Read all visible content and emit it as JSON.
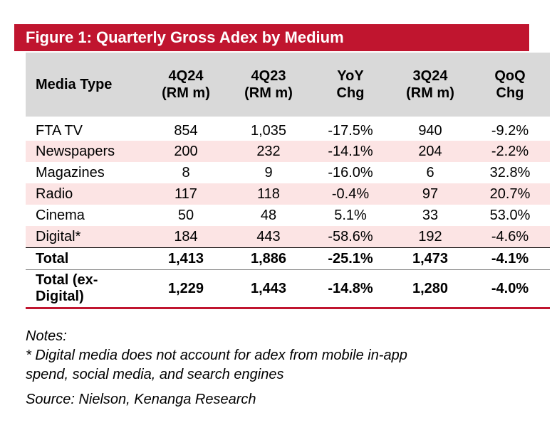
{
  "figure": {
    "title": "Figure 1: Quarterly Gross Adex by Medium",
    "accent_color": "#c0152f",
    "header_bg_color": "#d9d9d9",
    "shaded_row_color": "#fce4e4"
  },
  "table": {
    "headers": {
      "media_type": "Media Type",
      "q4_24_line1": "4Q24",
      "q4_24_line2": "(RM m)",
      "q4_23_line1": "4Q23",
      "q4_23_line2": "(RM m)",
      "yoy_line1": "YoY",
      "yoy_line2": "Chg",
      "q3_24_line1": "3Q24",
      "q3_24_line2": "(RM m)",
      "qoq_line1": "QoQ",
      "qoq_line2": "Chg"
    },
    "rows": [
      {
        "media": "FTA TV",
        "q4_24": "854",
        "q4_23": "1,035",
        "yoy": "-17.5%",
        "q3_24": "940",
        "qoq": "-9.2%"
      },
      {
        "media": "Newspapers",
        "q4_24": "200",
        "q4_23": "232",
        "yoy": "-14.1%",
        "q3_24": "204",
        "qoq": "-2.2%"
      },
      {
        "media": "Magazines",
        "q4_24": "8",
        "q4_23": "9",
        "yoy": "-16.0%",
        "q3_24": "6",
        "qoq": "32.8%"
      },
      {
        "media": "Radio",
        "q4_24": "117",
        "q4_23": "118",
        "yoy": "-0.4%",
        "q3_24": "97",
        "qoq": "20.7%"
      },
      {
        "media": "Cinema",
        "q4_24": "50",
        "q4_23": "48",
        "yoy": "5.1%",
        "q3_24": "33",
        "qoq": "53.0%"
      },
      {
        "media": "Digital*",
        "q4_24": "184",
        "q4_23": "443",
        "yoy": "-58.6%",
        "q3_24": "192",
        "qoq": "-4.6%"
      }
    ],
    "total": {
      "media": "Total",
      "q4_24": "1,413",
      "q4_23": "1,886",
      "yoy": "-25.1%",
      "q3_24": "1,473",
      "qoq": "-4.1%"
    },
    "total_ex_digital": {
      "media_line1": "Total (ex-",
      "media_line2": "Digital)",
      "q4_24": "1,229",
      "q4_23": "1,443",
      "yoy": "-14.8%",
      "q3_24": "1,280",
      "qoq": "-4.0%"
    }
  },
  "notes": {
    "heading": "Notes:",
    "footnote_line1": "* Digital media does not account for adex from mobile in-app",
    "footnote_line2": "spend, social media, and search engines",
    "source": "Source: Nielson, Kenanga Research"
  }
}
